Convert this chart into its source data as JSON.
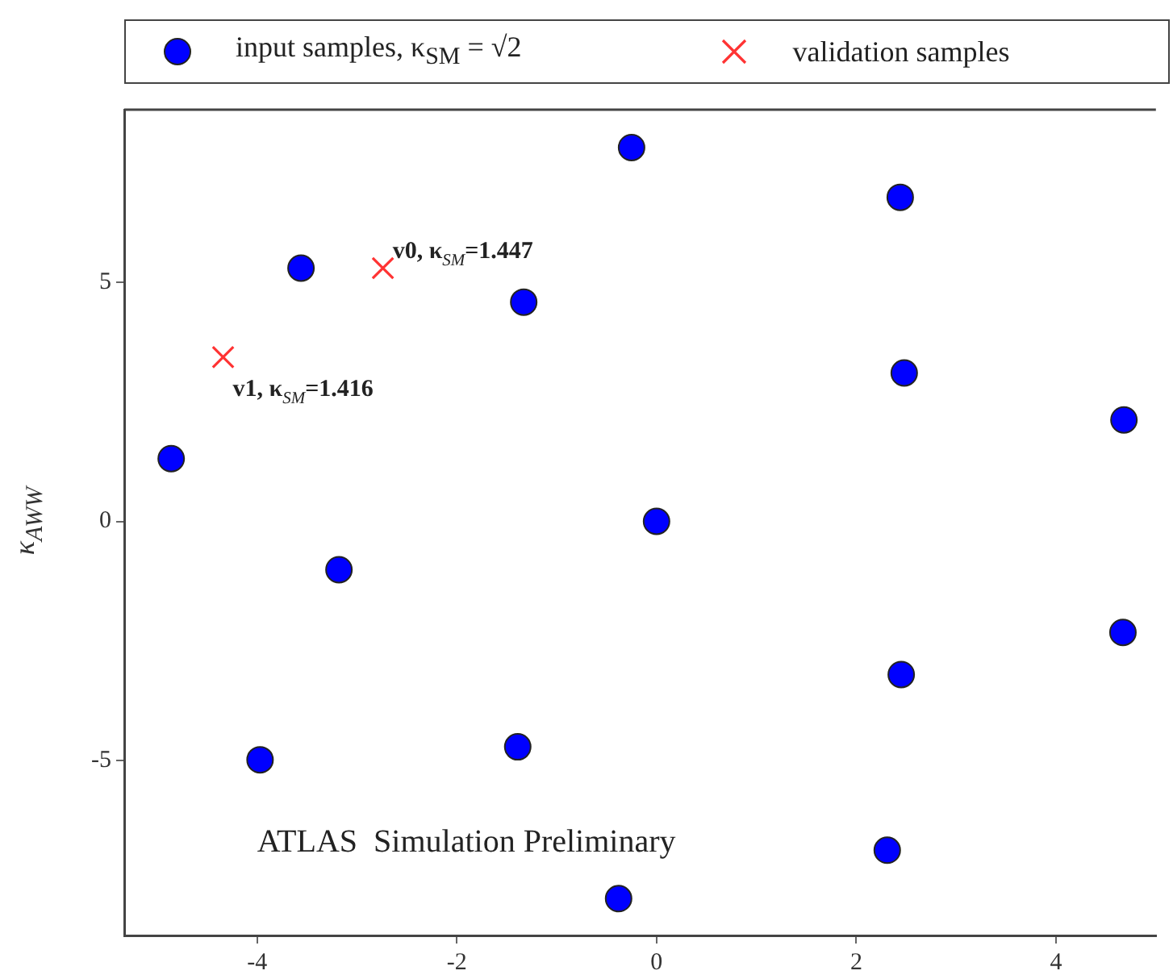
{
  "chart_data": {
    "type": "scatter",
    "ylabel": "κ$_{AWW}$",
    "xlim": [
      -5.33,
      5.0
    ],
    "ylim": [
      -8.65,
      8.6
    ],
    "xticks": [
      -4,
      -2,
      0,
      2,
      4
    ],
    "yticks": [
      -5,
      0,
      5
    ],
    "grid": false,
    "legend": "top",
    "series": [
      {
        "name": "input samples, κ$_{SM}$ = √2",
        "color": "#0000ff",
        "marker": "circle",
        "x": [
          -4.86,
          -3.56,
          -1.33,
          -0.25,
          2.44,
          2.48,
          4.68,
          0,
          -3.18,
          -3.97,
          -1.39,
          2.45,
          4.67,
          2.31,
          -0.38
        ],
        "values": [
          1.31,
          5.29,
          4.58,
          7.81,
          6.77,
          3.1,
          2.12,
          0,
          -1.01,
          -4.98,
          -4.71,
          -3.2,
          -2.32,
          -6.87,
          -7.88
        ]
      },
      {
        "name": "validation samples",
        "color": "#ff3333",
        "marker": "cross",
        "x": [
          -2.74,
          -4.34
        ],
        "values": [
          5.29,
          3.43
        ]
      }
    ],
    "annotations": [
      {
        "text": "v0, κ$_{SM}$=1.447",
        "x": -2.74,
        "y": 5.29
      },
      {
        "text": "v1, κ$_{SM}$=1.416",
        "x": -4.34,
        "y": 3.43
      },
      "ATLAS  Simulation Preliminary"
    ]
  }
}
